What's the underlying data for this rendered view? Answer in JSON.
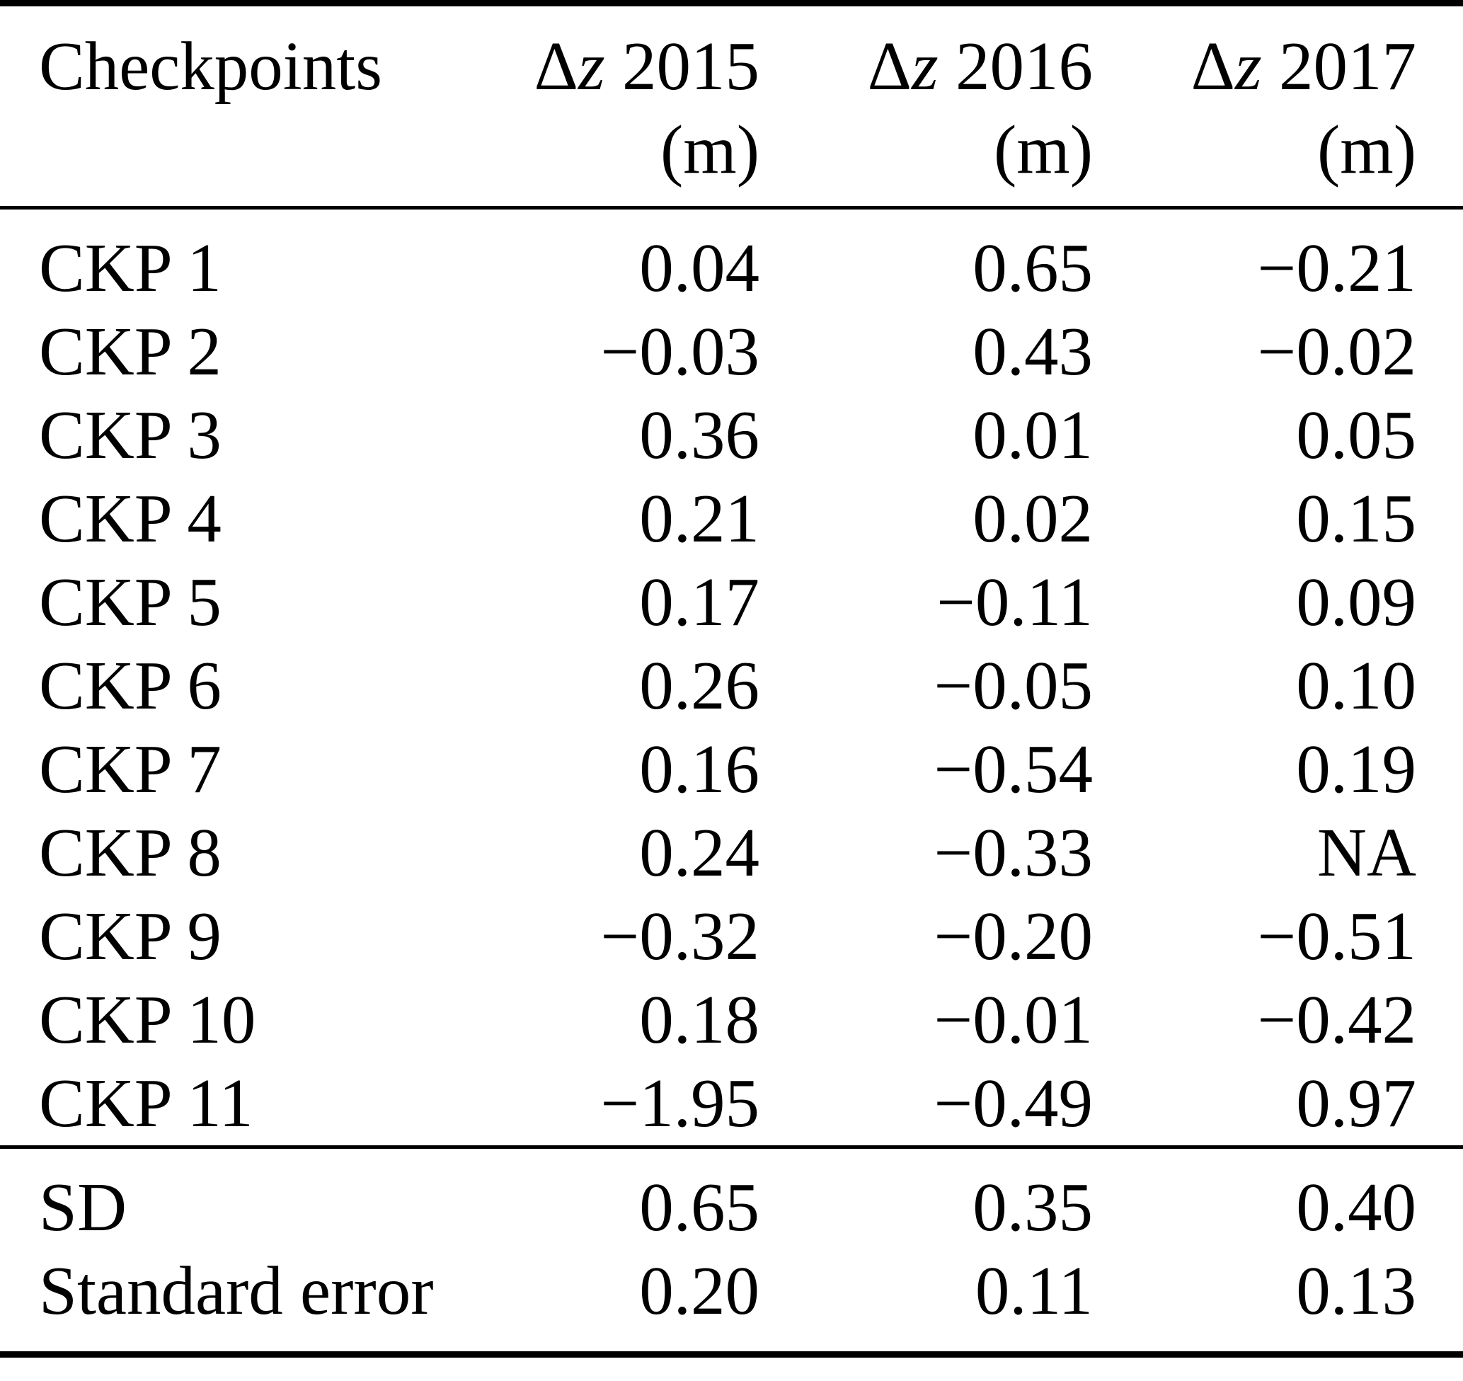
{
  "table": {
    "columns": {
      "checkpoints": "Checkpoints",
      "c2015": {
        "delta": "Δ",
        "var": "z",
        "year": "2015",
        "unit": "(m)"
      },
      "c2016": {
        "delta": "Δ",
        "var": "z",
        "year": "2016",
        "unit": "(m)"
      },
      "c2017": {
        "delta": "Δ",
        "var": "z",
        "year": "2017",
        "unit": "(m)"
      }
    },
    "rows": [
      {
        "label": "CKP 1",
        "v2015": "0.04",
        "v2016": "0.65",
        "v2017": "−0.21"
      },
      {
        "label": "CKP 2",
        "v2015": "−0.03",
        "v2016": "0.43",
        "v2017": "−0.02"
      },
      {
        "label": "CKP 3",
        "v2015": "0.36",
        "v2016": "0.01",
        "v2017": "0.05"
      },
      {
        "label": "CKP 4",
        "v2015": "0.21",
        "v2016": "0.02",
        "v2017": "0.15"
      },
      {
        "label": "CKP 5",
        "v2015": "0.17",
        "v2016": "−0.11",
        "v2017": "0.09"
      },
      {
        "label": "CKP 6",
        "v2015": "0.26",
        "v2016": "−0.05",
        "v2017": "0.10"
      },
      {
        "label": "CKP 7",
        "v2015": "0.16",
        "v2016": "−0.54",
        "v2017": "0.19"
      },
      {
        "label": "CKP 8",
        "v2015": "0.24",
        "v2016": "−0.33",
        "v2017": "NA"
      },
      {
        "label": "CKP 9",
        "v2015": "−0.32",
        "v2016": "−0.20",
        "v2017": "−0.51"
      },
      {
        "label": "CKP 10",
        "v2015": "0.18",
        "v2016": "−0.01",
        "v2017": "−0.42"
      },
      {
        "label": "CKP 11",
        "v2015": "−1.95",
        "v2016": "−0.49",
        "v2017": "0.97"
      }
    ],
    "summary": [
      {
        "label": "SD",
        "v2015": "0.65",
        "v2016": "0.35",
        "v2017": "0.40"
      },
      {
        "label": "Standard error",
        "v2015": "0.20",
        "v2016": "0.11",
        "v2017": "0.13"
      }
    ]
  },
  "chart_data": {
    "type": "table",
    "title": "",
    "columns": [
      "Checkpoints",
      "Δz 2015 (m)",
      "Δz 2016 (m)",
      "Δz 2017 (m)"
    ],
    "rows": [
      [
        "CKP 1",
        0.04,
        0.65,
        -0.21
      ],
      [
        "CKP 2",
        -0.03,
        0.43,
        -0.02
      ],
      [
        "CKP 3",
        0.36,
        0.01,
        0.05
      ],
      [
        "CKP 4",
        0.21,
        0.02,
        0.15
      ],
      [
        "CKP 5",
        0.17,
        -0.11,
        0.09
      ],
      [
        "CKP 6",
        0.26,
        -0.05,
        0.1
      ],
      [
        "CKP 7",
        0.16,
        -0.54,
        0.19
      ],
      [
        "CKP 8",
        0.24,
        -0.33,
        "NA"
      ],
      [
        "CKP 9",
        -0.32,
        -0.2,
        -0.51
      ],
      [
        "CKP 10",
        0.18,
        -0.01,
        -0.42
      ],
      [
        "CKP 11",
        -1.95,
        -0.49,
        0.97
      ]
    ],
    "summary_rows": [
      [
        "SD",
        0.65,
        0.35,
        0.4
      ],
      [
        "Standard error",
        0.2,
        0.11,
        0.13
      ]
    ]
  }
}
